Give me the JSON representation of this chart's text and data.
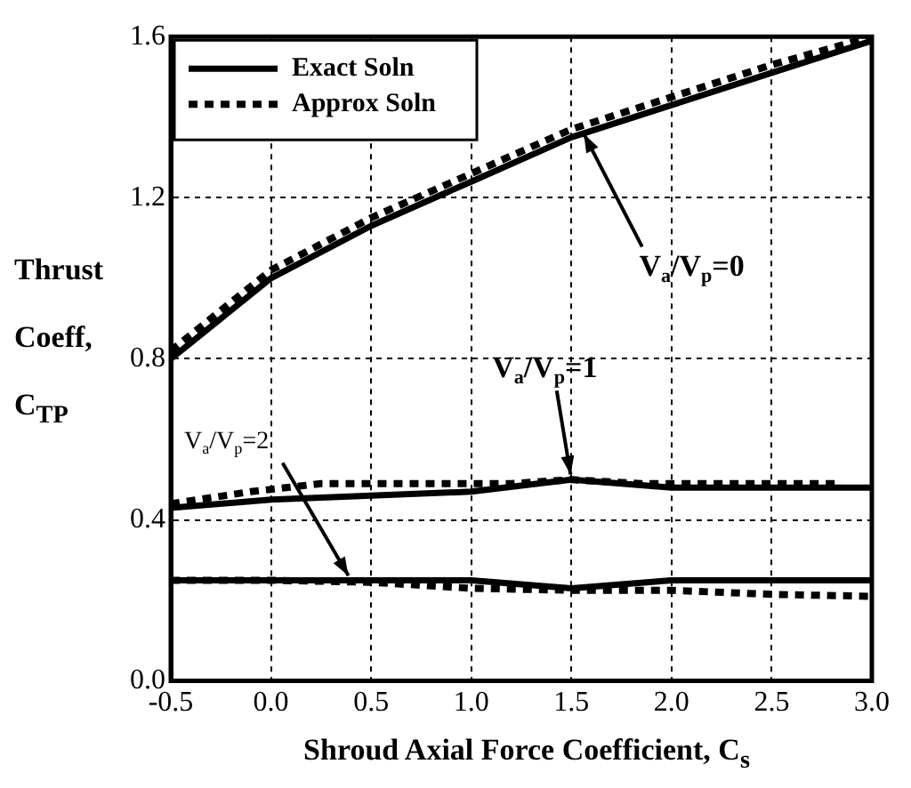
{
  "chart_data": {
    "type": "line",
    "xlabel": "Shroud Axial Force Coefficient, C$_{s}$",
    "ylabel": "Thrust Coeff, C$_{TP}$",
    "xlim": [
      -0.5,
      3.0
    ],
    "xticks": [
      {
        "value": -0.5,
        "label": "-0.5"
      },
      {
        "value": 0,
        "label": "0.0"
      },
      {
        "value": 0.5,
        "label": "0.5"
      },
      {
        "value": 1,
        "label": "1.0"
      },
      {
        "value": 1.5,
        "label": "1.5"
      },
      {
        "value": 2,
        "label": "2.0"
      },
      {
        "value": 2.5,
        "label": "2.5"
      },
      {
        "value": 3,
        "label": "3.0"
      }
    ],
    "ylim": [
      0,
      1.6
    ],
    "yticks": [
      {
        "value": 0,
        "label": "0.0"
      },
      0.4,
      0.8,
      1.2,
      1.6
    ],
    "grid": true,
    "legend": "top left",
    "marker": "none",
    "series": [
      {
        "name": "Exact Soln",
        "color": "#000000",
        "line_style": "solid",
        "x": [
          -0.5,
          0,
          0.5,
          1,
          1.5,
          2,
          2.5,
          3
        ],
        "values": [
          0.8,
          1.0,
          1.13,
          1.24,
          1.35,
          1.43,
          1.51,
          1.59
        ]
      },
      {
        "name": "Approx Soln",
        "color": "#000000",
        "line_style": "dotted",
        "x": [
          -0.5,
          0,
          0.5,
          1,
          1.5,
          2,
          2.5,
          3
        ],
        "values": [
          0.82,
          1.02,
          1.15,
          1.26,
          1.37,
          1.45,
          1.53,
          1.6
        ]
      },
      {
        "color": "#000000",
        "line_style": "solid",
        "x": [
          -0.5,
          0,
          0.5,
          1,
          1.5,
          2,
          2.5,
          3
        ],
        "values": [
          0.43,
          0.45,
          0.46,
          0.47,
          0.5,
          0.48,
          0.48,
          0.48
        ]
      },
      {
        "color": "#000000",
        "line_style": "dotted",
        "x": [
          -0.5,
          -0.1,
          0.25,
          0.55,
          0.9,
          1.2,
          1.5,
          1.85,
          2.2,
          2.5,
          2.85
        ],
        "values": [
          0.44,
          0.47,
          0.49,
          0.49,
          0.49,
          0.49,
          0.5,
          0.49,
          0.49,
          0.49,
          0.49
        ]
      },
      {
        "color": "#000000",
        "line_style": "solid",
        "x": [
          -0.5,
          0,
          0.5,
          1,
          1.5,
          2,
          2.5,
          3
        ],
        "values": [
          0.25,
          0.25,
          0.25,
          0.25,
          0.23,
          0.25,
          0.25,
          0.25
        ]
      },
      {
        "color": "#000000",
        "line_style": "dotted",
        "x": [
          -0.5,
          0,
          0.5,
          1,
          1.5,
          2,
          2.5,
          3
        ],
        "values": [
          0.25,
          0.25,
          0.245,
          0.23,
          0.225,
          0.225,
          0.215,
          0.21
        ]
      }
    ],
    "annotations": [
      {
        "text": "V$_{a}$/V$_{p}$=0",
        "x": 1.55,
        "y": 1.37
      },
      {
        "text": "V$_{a}$/V$_{p}$=1",
        "x": 1.5,
        "y": 0.5
      },
      {
        "text": "V$_{a}$/V$_{p}$=2",
        "x": 0.4,
        "y": 0.25
      }
    ]
  }
}
